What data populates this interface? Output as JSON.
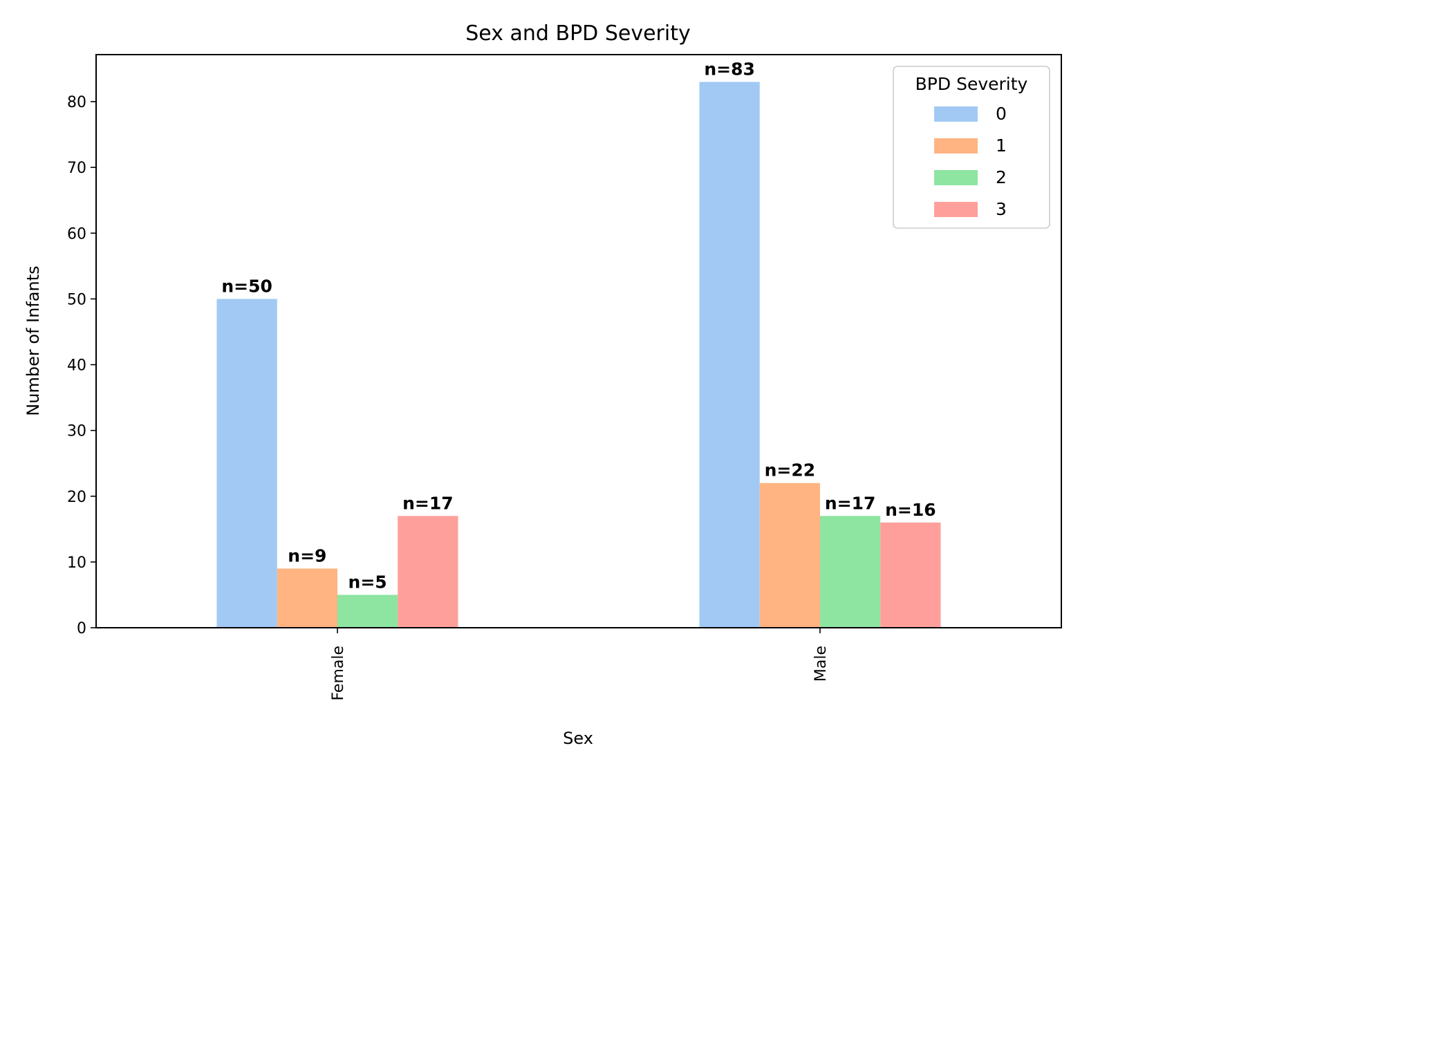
{
  "chart_data": {
    "type": "bar",
    "title": "Sex and BPD Severity",
    "xlabel": "Sex",
    "ylabel": "Number of Infants",
    "categories": [
      "Female",
      "Male"
    ],
    "ylim": [
      0,
      87.15
    ],
    "yticks": [
      0,
      10,
      20,
      30,
      40,
      50,
      60,
      70,
      80
    ],
    "legend": {
      "title": "BPD Severity",
      "placement": "top-right"
    },
    "series": [
      {
        "name": "0",
        "values": [
          50,
          83
        ],
        "color": "#a1c9f4",
        "labels": [
          "n=50",
          "n=83"
        ]
      },
      {
        "name": "1",
        "values": [
          9,
          22
        ],
        "color": "#ffb482",
        "labels": [
          "n=9",
          "n=22"
        ]
      },
      {
        "name": "2",
        "values": [
          5,
          17
        ],
        "color": "#8de5a1",
        "labels": [
          "n=5",
          "n=17"
        ]
      },
      {
        "name": "3",
        "values": [
          17,
          16
        ],
        "color": "#ff9f9b",
        "labels": [
          "n=17",
          "n=16"
        ]
      }
    ],
    "grid": false,
    "colors": {
      "axes": "#000000",
      "background": "#ffffff"
    }
  }
}
